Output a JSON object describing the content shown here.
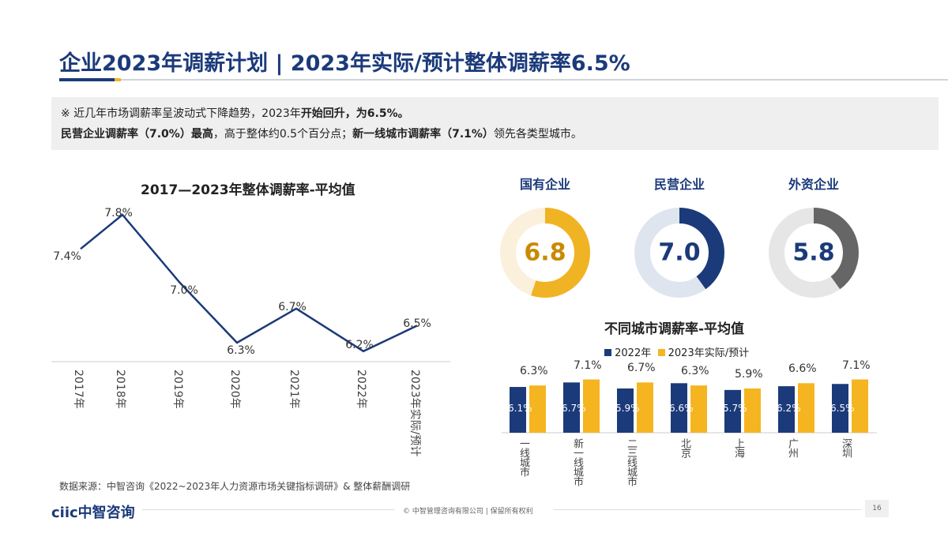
{
  "title": "企业2023年调薪计划 | 2023年实际/预计整体调薪率6.5%",
  "note": {
    "line1_a": "※ 近几年市场调薪率呈波动式下降趋势，2023年",
    "line1_b": "开始回升，为6.5%。",
    "line2_a": "民营企业调薪率（7.0%）最高",
    "line2_b": "，高于整体约0.5个百分点；",
    "line2_c": "新一线城市调薪率（7.1%）",
    "line2_d": "领先各类型城市。"
  },
  "chart_data": [
    {
      "type": "line",
      "title": "2017—2023年整体调薪率-平均值",
      "categories": [
        "2017年",
        "2018年",
        "2019年",
        "2020年",
        "2021年",
        "2022年",
        "2023年实际/预计"
      ],
      "values": [
        7.4,
        7.8,
        7.0,
        6.3,
        6.7,
        6.2,
        6.5
      ],
      "labels": [
        "7.4%",
        "7.8%",
        "7.0%",
        "6.3%",
        "6.7%",
        "6.2%",
        "6.5%"
      ],
      "color": "#1b3a7a",
      "grid": false
    },
    {
      "type": "pie",
      "subtype": "donut",
      "items": [
        {
          "title": "国有企业",
          "value": "6.8",
          "fill": 0.55,
          "color": "#f0b323",
          "track": "#fbf0dc",
          "text_color": "#c98a00"
        },
        {
          "title": "民营企业",
          "value": "7.0",
          "fill": 0.4,
          "color": "#1b3a7a",
          "track": "#dfe5ef",
          "text_color": "#1b3a7a"
        },
        {
          "title": "外资企业",
          "value": "5.8",
          "fill": 0.4,
          "color": "#666666",
          "track": "#e6e6e6",
          "text_color": "#1b3a7a"
        }
      ]
    },
    {
      "type": "bar",
      "title": "不同城市调薪率-平均值",
      "categories": [
        "一线城市",
        "新一线城市",
        "二三线城市",
        "北京",
        "上海",
        "广州",
        "深圳"
      ],
      "legend_position": "top",
      "series": [
        {
          "name": "2022年",
          "values": [
            6.1,
            6.7,
            5.9,
            6.6,
            5.7,
            6.2,
            6.5
          ],
          "labels": [
            "6.1%",
            "6.7%",
            "5.9%",
            "6.6%",
            "5.7%",
            "6.2%",
            "6.5%"
          ],
          "color": "#1b3a7a"
        },
        {
          "name": "2023年实际/预计",
          "values": [
            6.3,
            7.1,
            6.7,
            6.3,
            5.9,
            6.6,
            7.1
          ],
          "labels": [
            "6.3%",
            "7.1%",
            "6.7%",
            "6.3%",
            "5.9%",
            "6.6%",
            "7.1%"
          ],
          "color": "#f5b521"
        }
      ]
    }
  ],
  "source": "数据来源：中智咨询《2022~2023年人力资源市场关键指标调研》& 整体薪酬调研",
  "footer": {
    "logo": "ciic中智咨询",
    "copyright": "© 中智管理咨询有限公司 | 保留所有权利",
    "page": "16"
  }
}
